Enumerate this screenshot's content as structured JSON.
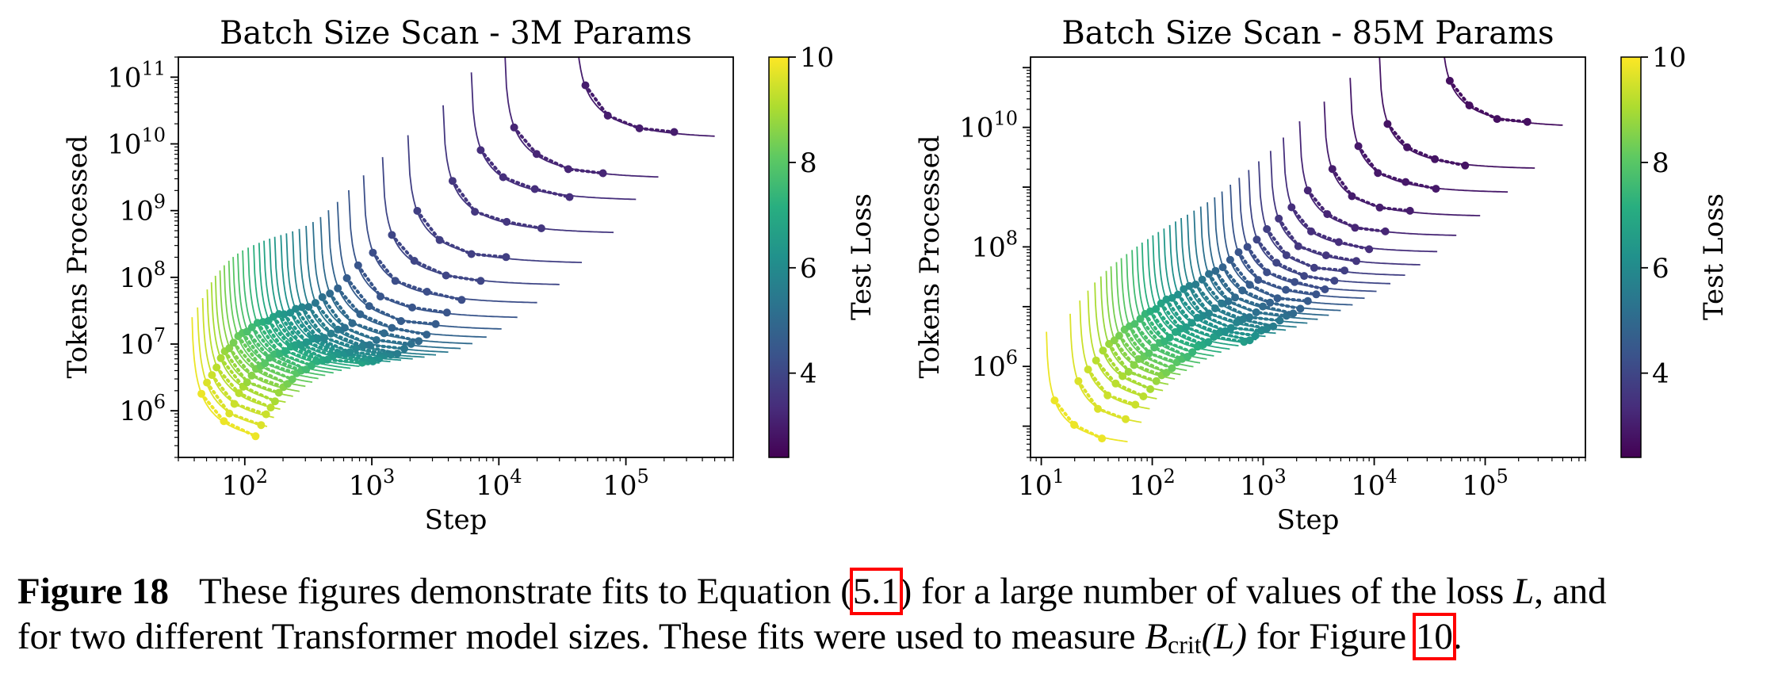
{
  "chart_data": [
    {
      "type": "line",
      "title": "Batch Size Scan - 3M Params",
      "xlabel": "Step",
      "ylabel": "Tokens Processed",
      "xscale": "log",
      "yscale": "log",
      "xlim": [
        30,
        700000
      ],
      "ylim": [
        200000,
        200000000000
      ],
      "xticks": [
        {
          "v": 100,
          "b": "10",
          "e": "2"
        },
        {
          "v": 1000,
          "b": "10",
          "e": "3"
        },
        {
          "v": 10000,
          "b": "10",
          "e": "4"
        },
        {
          "v": 100000,
          "b": "10",
          "e": "5"
        }
      ],
      "yticks": [
        {
          "v": 1000000,
          "b": "10",
          "e": "6"
        },
        {
          "v": 10000000,
          "b": "10",
          "e": "7"
        },
        {
          "v": 100000000,
          "b": "10",
          "e": "8"
        },
        {
          "v": 1000000000,
          "b": "10",
          "e": "9"
        },
        {
          "v": 10000000000,
          "b": "10",
          "e": "10"
        },
        {
          "v": 100000000000,
          "b": "10",
          "e": "11"
        }
      ],
      "colorbar": {
        "label": "Test Loss",
        "range": [
          2.4,
          10
        ],
        "ticks": [
          "4",
          "6",
          "8",
          "10"
        ],
        "tick_values": [
          4,
          6,
          8,
          10
        ],
        "colormap": "viridis"
      },
      "fit_curves": [
        {
          "loss": 9.8,
          "s_min": 38,
          "e_min": 300000,
          "s_end": 130
        },
        {
          "loss": 9.6,
          "s_min": 42,
          "e_min": 420000,
          "s_end": 150
        },
        {
          "loss": 9.4,
          "s_min": 46,
          "e_min": 580000,
          "s_end": 170
        },
        {
          "loss": 9.2,
          "s_min": 50,
          "e_min": 780000,
          "s_end": 190
        },
        {
          "loss": 9.0,
          "s_min": 54,
          "e_min": 1000000,
          "s_end": 210
        },
        {
          "loss": 8.8,
          "s_min": 58,
          "e_min": 1250000,
          "s_end": 240
        },
        {
          "loss": 8.6,
          "s_min": 63,
          "e_min": 1500000,
          "s_end": 270
        },
        {
          "loss": 8.4,
          "s_min": 68,
          "e_min": 1800000,
          "s_end": 300
        },
        {
          "loss": 8.2,
          "s_min": 74,
          "e_min": 2100000,
          "s_end": 340
        },
        {
          "loss": 8.0,
          "s_min": 80,
          "e_min": 2400000,
          "s_end": 380
        },
        {
          "loss": 7.8,
          "s_min": 87,
          "e_min": 2700000,
          "s_end": 430
        },
        {
          "loss": 7.6,
          "s_min": 95,
          "e_min": 3000000,
          "s_end": 500
        },
        {
          "loss": 7.4,
          "s_min": 105,
          "e_min": 3300000,
          "s_end": 580
        },
        {
          "loss": 7.2,
          "s_min": 116,
          "e_min": 3600000,
          "s_end": 680
        },
        {
          "loss": 7.0,
          "s_min": 128,
          "e_min": 3900000,
          "s_end": 800
        },
        {
          "loss": 6.8,
          "s_min": 140,
          "e_min": 4200000,
          "s_end": 950
        },
        {
          "loss": 6.6,
          "s_min": 155,
          "e_min": 4500000,
          "s_end": 1150
        },
        {
          "loss": 6.4,
          "s_min": 170,
          "e_min": 4800000,
          "s_end": 1400
        },
        {
          "loss": 6.2,
          "s_min": 190,
          "e_min": 5100000,
          "s_end": 1700
        },
        {
          "loss": 6.0,
          "s_min": 210,
          "e_min": 5400000,
          "s_end": 2100
        },
        {
          "loss": 5.8,
          "s_min": 235,
          "e_min": 5800000,
          "s_end": 2600
        },
        {
          "loss": 5.6,
          "s_min": 265,
          "e_min": 6300000,
          "s_end": 3200
        },
        {
          "loss": 5.4,
          "s_min": 300,
          "e_min": 7000000,
          "s_end": 4000
        },
        {
          "loss": 5.2,
          "s_min": 340,
          "e_min": 8000000,
          "s_end": 5000
        },
        {
          "loss": 5.0,
          "s_min": 390,
          "e_min": 9500000,
          "s_end": 6200
        },
        {
          "loss": 4.8,
          "s_min": 450,
          "e_min": 12000000,
          "s_end": 8000
        },
        {
          "loss": 4.6,
          "s_min": 530,
          "e_min": 16000000,
          "s_end": 10500
        },
        {
          "loss": 4.4,
          "s_min": 650,
          "e_min": 24000000,
          "s_end": 14000
        },
        {
          "loss": 4.2,
          "s_min": 850,
          "e_min": 40000000,
          "s_end": 20000
        },
        {
          "loss": 4.0,
          "s_min": 1200,
          "e_min": 75000000,
          "s_end": 30000
        },
        {
          "loss": 3.8,
          "s_min": 1900,
          "e_min": 160000000,
          "s_end": 45000
        },
        {
          "loss": 3.6,
          "s_min": 3600,
          "e_min": 450000000,
          "s_end": 80000
        },
        {
          "loss": 3.4,
          "s_min": 6000,
          "e_min": 1400000000,
          "s_end": 120000
        },
        {
          "loss": 3.2,
          "s_min": 11000,
          "e_min": 3000000000,
          "s_end": 180000
        },
        {
          "loss": 3.0,
          "s_min": 40000,
          "e_min": 12000000000,
          "s_end": 500000
        }
      ]
    },
    {
      "type": "line",
      "title": "Batch Size Scan - 85M Params",
      "xlabel": "Step",
      "ylabel": "Tokens Processed",
      "xscale": "log",
      "yscale": "log",
      "xlim": [
        8,
        800000
      ],
      "ylim": [
        30000,
        150000000000
      ],
      "xticks": [
        {
          "v": 10,
          "b": "10",
          "e": "1"
        },
        {
          "v": 100,
          "b": "10",
          "e": "2"
        },
        {
          "v": 1000,
          "b": "10",
          "e": "3"
        },
        {
          "v": 10000,
          "b": "10",
          "e": "4"
        },
        {
          "v": 100000,
          "b": "10",
          "e": "5"
        }
      ],
      "yticks": [
        {
          "v": 1000000,
          "b": "10",
          "e": "6"
        },
        {
          "v": 100000000,
          "b": "10",
          "e": "8"
        },
        {
          "v": 10000000000,
          "b": "10",
          "e": "10"
        }
      ],
      "colorbar": {
        "label": "Test Loss",
        "range": [
          2.4,
          10
        ],
        "ticks": [
          "4",
          "6",
          "8",
          "10"
        ],
        "tick_values": [
          4,
          6,
          8,
          10
        ],
        "colormap": "viridis"
      },
      "fit_curves": [
        {
          "loss": 9.8,
          "s_min": 11,
          "e_min": 45000,
          "s_end": 60
        },
        {
          "loss": 9.6,
          "s_min": 18,
          "e_min": 90000,
          "s_end": 80
        },
        {
          "loss": 9.4,
          "s_min": 22,
          "e_min": 150000,
          "s_end": 95
        },
        {
          "loss": 9.2,
          "s_min": 26,
          "e_min": 220000,
          "s_end": 110
        },
        {
          "loss": 9.0,
          "s_min": 30,
          "e_min": 300000,
          "s_end": 125
        },
        {
          "loss": 8.8,
          "s_min": 34,
          "e_min": 380000,
          "s_end": 140
        },
        {
          "loss": 8.6,
          "s_min": 38,
          "e_min": 470000,
          "s_end": 160
        },
        {
          "loss": 8.4,
          "s_min": 42,
          "e_min": 560000,
          "s_end": 180
        },
        {
          "loss": 8.2,
          "s_min": 47,
          "e_min": 660000,
          "s_end": 205
        },
        {
          "loss": 8.0,
          "s_min": 52,
          "e_min": 770000,
          "s_end": 235
        },
        {
          "loss": 7.8,
          "s_min": 58,
          "e_min": 900000,
          "s_end": 270
        },
        {
          "loss": 7.6,
          "s_min": 65,
          "e_min": 1050000,
          "s_end": 310
        },
        {
          "loss": 7.4,
          "s_min": 72,
          "e_min": 1200000,
          "s_end": 360
        },
        {
          "loss": 7.2,
          "s_min": 80,
          "e_min": 1400000,
          "s_end": 420
        },
        {
          "loss": 7.0,
          "s_min": 90,
          "e_min": 1600000,
          "s_end": 500
        },
        {
          "loss": 6.8,
          "s_min": 100,
          "e_min": 1850000,
          "s_end": 600
        },
        {
          "loss": 6.6,
          "s_min": 112,
          "e_min": 2100000,
          "s_end": 720
        },
        {
          "loss": 6.4,
          "s_min": 126,
          "e_min": 2400000,
          "s_end": 870
        },
        {
          "loss": 6.2,
          "s_min": 142,
          "e_min": 2750000,
          "s_end": 1050
        },
        {
          "loss": 6.0,
          "s_min": 160,
          "e_min": 3150000,
          "s_end": 1300
        },
        {
          "loss": 5.8,
          "s_min": 180,
          "e_min": 3600000,
          "s_end": 1600
        },
        {
          "loss": 5.6,
          "s_min": 205,
          "e_min": 4100000,
          "s_end": 2000
        },
        {
          "loss": 5.4,
          "s_min": 235,
          "e_min": 4800000,
          "s_end": 2500
        },
        {
          "loss": 5.2,
          "s_min": 270,
          "e_min": 5600000,
          "s_end": 3100
        },
        {
          "loss": 5.0,
          "s_min": 310,
          "e_min": 6600000,
          "s_end": 3900
        },
        {
          "loss": 4.8,
          "s_min": 360,
          "e_min": 8000000,
          "s_end": 5000
        },
        {
          "loss": 4.6,
          "s_min": 420,
          "e_min": 10000000,
          "s_end": 6400
        },
        {
          "loss": 4.4,
          "s_min": 500,
          "e_min": 13000000,
          "s_end": 8200
        },
        {
          "loss": 4.2,
          "s_min": 600,
          "e_min": 17000000,
          "s_end": 10500
        },
        {
          "loss": 4.0,
          "s_min": 730,
          "e_min": 23000000,
          "s_end": 14000
        },
        {
          "loss": 3.8,
          "s_min": 900,
          "e_min": 32000000,
          "s_end": 19000
        },
        {
          "loss": 3.6,
          "s_min": 1150,
          "e_min": 48000000,
          "s_end": 26000
        },
        {
          "loss": 3.4,
          "s_min": 1500,
          "e_min": 80000000,
          "s_end": 37000
        },
        {
          "loss": 3.2,
          "s_min": 2100,
          "e_min": 150000000,
          "s_end": 55000
        },
        {
          "loss": 3.0,
          "s_min": 3500,
          "e_min": 320000000,
          "s_end": 90000
        },
        {
          "loss": 2.9,
          "s_min": 6000,
          "e_min": 800000000,
          "s_end": 160000
        },
        {
          "loss": 2.8,
          "s_min": 11000,
          "e_min": 2000000000,
          "s_end": 280000
        },
        {
          "loss": 2.7,
          "s_min": 40000,
          "e_min": 10000000000,
          "s_end": 500000
        }
      ]
    }
  ],
  "caption": {
    "label": "Figure 18",
    "t1": "These figures demonstrate fits to Equation (",
    "ref1": "5.1",
    "t2": ") for a large number of values of the loss ",
    "math_L": "L",
    "t3": ", and",
    "t4": "for two different Transformer model sizes. These fits were used to measure ",
    "math_B": "B",
    "math_sub": "crit",
    "math_arg": "(L)",
    "t5": " for Figure ",
    "ref2": "10",
    "t6": "."
  }
}
